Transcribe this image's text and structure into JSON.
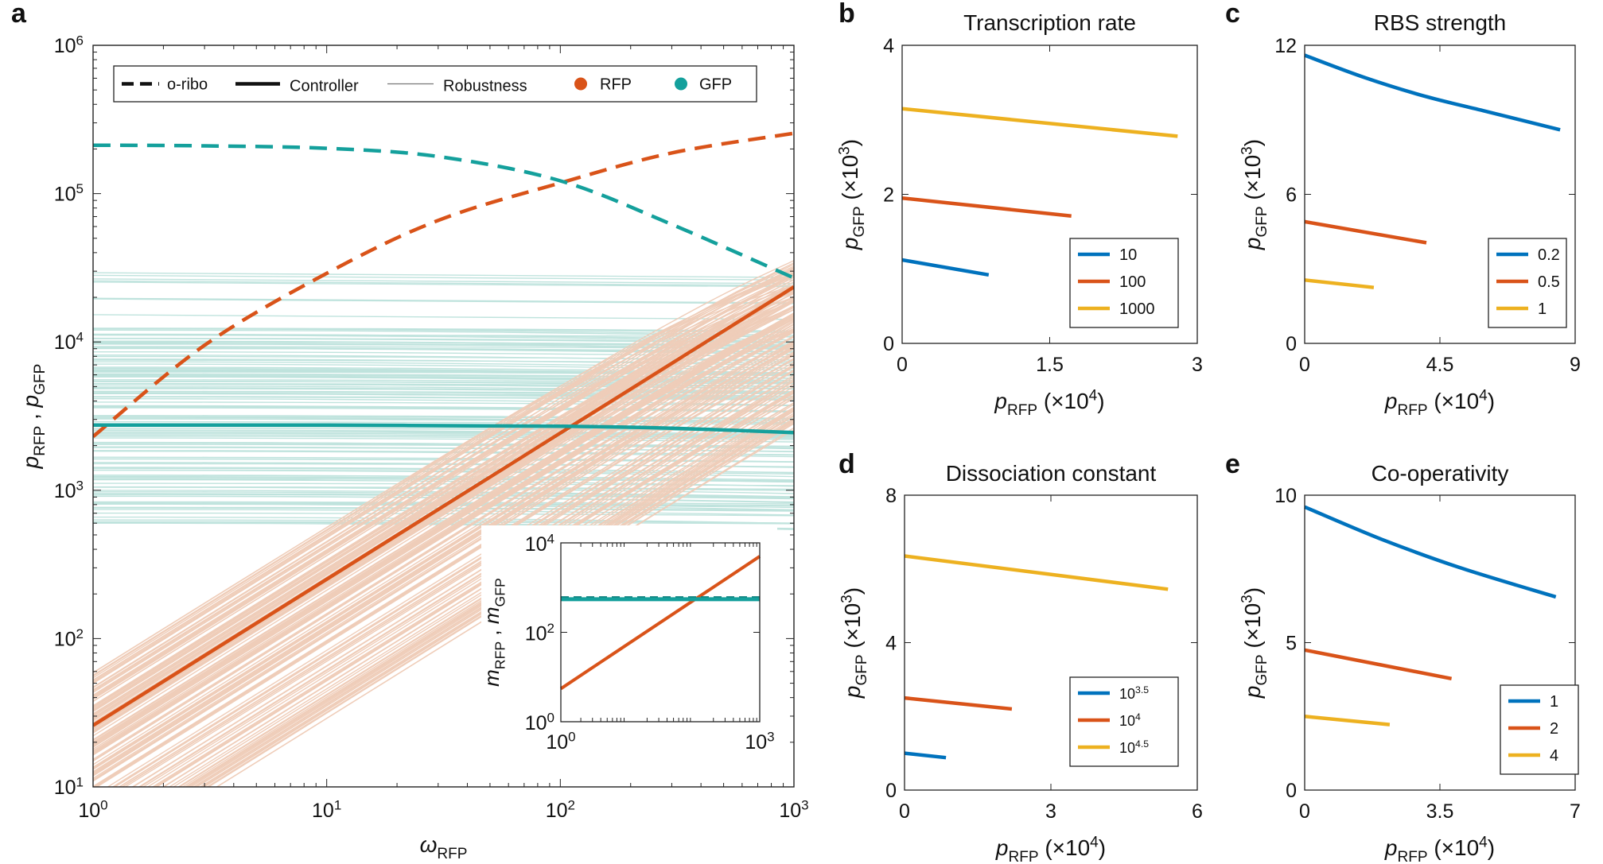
{
  "colors": {
    "rfp": "#d95319",
    "gfp": "#14a09c",
    "rfp_light": "#efcdb9",
    "gfp_light": "#bfe3dd",
    "blue": "#0072bd",
    "red": "#d95319",
    "yellow": "#edb120"
  },
  "panel_a": {
    "letter": "a",
    "legend": [
      "o-ribo",
      "Controller",
      "Robustness",
      "RFP",
      "GFP"
    ],
    "ylabel_parts": [
      "p",
      "RFP",
      " , ",
      "p",
      "GFP"
    ],
    "xlabel_parts": [
      "ω",
      "RFP"
    ],
    "inset_ylabel_parts": [
      "m",
      "RFP",
      " , ",
      "m",
      "GFP"
    ]
  },
  "chart_data": [
    {
      "panel": "a",
      "type": "line",
      "xscale": "log",
      "yscale": "log",
      "xlim": [
        1,
        1000
      ],
      "ylim": [
        10,
        1000000
      ],
      "xticks": [
        1,
        10,
        100,
        1000
      ],
      "yticks": [
        10,
        100,
        1000,
        10000,
        100000,
        1000000
      ],
      "xlabel": "ωRFP",
      "ylabel": "pRFP , pGFP",
      "legend": [
        "o-ribo",
        "Controller",
        "Robustness",
        "RFP",
        "GFP"
      ],
      "series": [
        {
          "name": "RFP o-ribo",
          "style": "dashed",
          "color": "rfp",
          "x": [
            1,
            3,
            10,
            30,
            100,
            300,
            1000
          ],
          "y": [
            2300,
            9500,
            29000,
            66000,
            118000,
            188000,
            255000
          ]
        },
        {
          "name": "GFP o-ribo",
          "style": "dashed",
          "color": "gfp",
          "x": [
            1,
            3,
            10,
            30,
            100,
            300,
            1000
          ],
          "y": [
            212000,
            210000,
            202000,
            178000,
            122000,
            62000,
            27000
          ]
        },
        {
          "name": "RFP controller",
          "style": "solid",
          "color": "rfp",
          "x": [
            1,
            1000
          ],
          "y": [
            26,
            23500
          ]
        },
        {
          "name": "GFP controller",
          "style": "solid",
          "color": "gfp",
          "x": [
            1,
            10,
            100,
            300,
            1000
          ],
          "y": [
            2750,
            2750,
            2700,
            2620,
            2450
          ]
        }
      ],
      "robustness_bands": {
        "rfp_start_range": [
          3,
          60
        ],
        "rfp_slope_decades": 2.95,
        "gfp_level_range": [
          600,
          12500
        ]
      },
      "inset": {
        "xscale": "log",
        "yscale": "log",
        "xlim": [
          1,
          1000
        ],
        "ylim": [
          1,
          10000
        ],
        "xticks": [
          1,
          1000
        ],
        "yticks": [
          1,
          100,
          10000
        ],
        "ylabel": "mRFP , mGFP",
        "series": [
          {
            "name": "RFP mRNA",
            "color": "rfp",
            "x": [
              1,
              1000
            ],
            "y": [
              5.5,
              5000
            ]
          },
          {
            "name": "GFP mRNA",
            "color": "gfp",
            "x": [
              1,
              1000
            ],
            "y": [
              550,
              550
            ]
          }
        ]
      }
    },
    {
      "panel": "b",
      "type": "line",
      "title": "Transcription rate",
      "xlim": [
        0,
        3
      ],
      "ylim": [
        0,
        4
      ],
      "xticks": [
        0,
        1.5,
        3
      ],
      "yticks": [
        0,
        2,
        4
      ],
      "xlabel": "pRFP (×10^4)",
      "ylabel": "pGFP (×10^3)",
      "legend_labels": [
        "10",
        "100",
        "1000"
      ],
      "legend_sup": [
        "",
        "",
        ""
      ],
      "series": [
        {
          "name": "10",
          "color": "blue",
          "x": [
            0,
            0.88
          ],
          "y": [
            1.12,
            0.92
          ]
        },
        {
          "name": "100",
          "color": "red",
          "x": [
            0,
            1.72
          ],
          "y": [
            1.95,
            1.71
          ]
        },
        {
          "name": "1000",
          "color": "yellow",
          "x": [
            0,
            2.8
          ],
          "y": [
            3.15,
            2.78
          ]
        }
      ]
    },
    {
      "panel": "c",
      "type": "line",
      "title": "RBS strength",
      "xlim": [
        0,
        9
      ],
      "ylim": [
        0,
        12
      ],
      "xticks": [
        0,
        4.5,
        9
      ],
      "yticks": [
        0,
        6,
        12
      ],
      "xlabel": "pRFP (×10^4)",
      "ylabel": "pGFP (×10^3)",
      "legend_labels": [
        "0.2",
        "0.5",
        "1"
      ],
      "legend_sup": [
        "",
        "",
        ""
      ],
      "series": [
        {
          "name": "0.2",
          "color": "blue",
          "x": [
            0,
            2,
            4,
            6,
            8.5
          ],
          "y": [
            11.6,
            10.7,
            9.95,
            9.35,
            8.6
          ]
        },
        {
          "name": "0.5",
          "color": "red",
          "x": [
            0,
            4.05
          ],
          "y": [
            4.9,
            4.05
          ]
        },
        {
          "name": "1",
          "color": "yellow",
          "x": [
            0,
            2.3
          ],
          "y": [
            2.55,
            2.25
          ]
        }
      ]
    },
    {
      "panel": "d",
      "type": "line",
      "title": "Dissociation constant",
      "xlim": [
        0,
        6
      ],
      "ylim": [
        0,
        8
      ],
      "xticks": [
        0,
        3,
        6
      ],
      "yticks": [
        0,
        4,
        8
      ],
      "xlabel": "pRFP (×10^4)",
      "ylabel": "pGFP (×10^3)",
      "legend_labels": [
        "10",
        "10",
        "10"
      ],
      "legend_sup": [
        "3.5",
        "4",
        "4.5"
      ],
      "series": [
        {
          "name": "10^3.5",
          "color": "blue",
          "x": [
            0,
            0.85
          ],
          "y": [
            1.0,
            0.88
          ]
        },
        {
          "name": "10^4",
          "color": "red",
          "x": [
            0,
            2.2
          ],
          "y": [
            2.5,
            2.2
          ]
        },
        {
          "name": "10^4.5",
          "color": "yellow",
          "x": [
            0,
            5.4
          ],
          "y": [
            6.35,
            5.45
          ]
        }
      ]
    },
    {
      "panel": "e",
      "type": "line",
      "title": "Co-operativity",
      "xlim": [
        0,
        7
      ],
      "ylim": [
        0,
        10
      ],
      "xticks": [
        0,
        3.5,
        7
      ],
      "yticks": [
        0,
        5,
        10
      ],
      "xlabel": "pRFP (×10^4)",
      "ylabel": "pGFP (×10^3)",
      "legend_labels": [
        "1",
        "2",
        "4"
      ],
      "legend_sup": [
        "",
        "",
        ""
      ],
      "series": [
        {
          "name": "1",
          "color": "blue",
          "x": [
            0,
            2,
            4,
            6.5
          ],
          "y": [
            9.6,
            8.5,
            7.55,
            6.55
          ]
        },
        {
          "name": "2",
          "color": "red",
          "x": [
            0,
            3.8
          ],
          "y": [
            4.75,
            3.78
          ]
        },
        {
          "name": "4",
          "color": "yellow",
          "x": [
            0,
            2.2
          ],
          "y": [
            2.5,
            2.22
          ]
        }
      ]
    }
  ],
  "small_panels": {
    "titles": [
      "Transcription rate",
      "RBS strength",
      "Dissociation constant",
      "Co-operativity"
    ],
    "letters": [
      "b",
      "c",
      "d",
      "e"
    ],
    "ylabel_parts": [
      "p",
      "GFP",
      " (×10",
      "3",
      ")"
    ],
    "xlabel_parts": [
      "p",
      "RFP",
      " (×10",
      "4",
      ")"
    ]
  }
}
